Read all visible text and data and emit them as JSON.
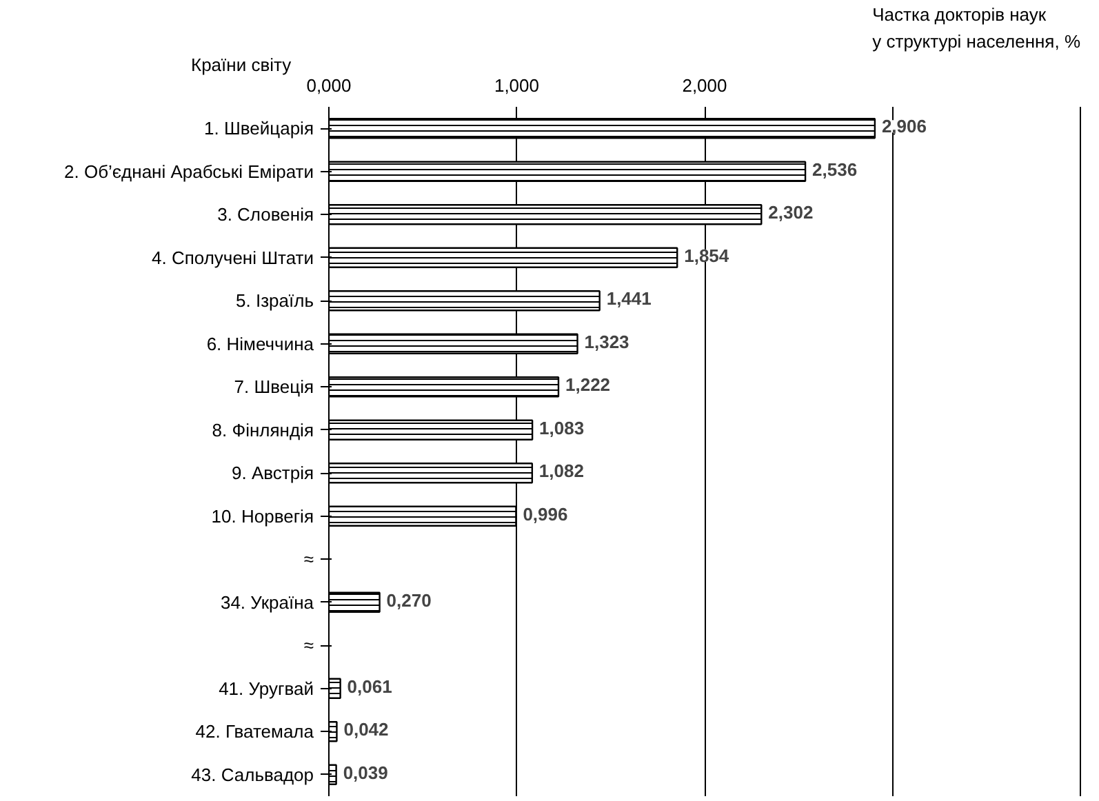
{
  "chart_data": {
    "type": "bar",
    "orientation": "horizontal",
    "ylabel": "Країни світу",
    "xlabel": "Частка докторів наук\nу структурі населення, %",
    "categories": [
      "1. Швейцарія",
      "2. Об’єднані Арабські Емірати",
      "3. Словенія",
      "4. Сполучені Штати",
      "5. Ізраїль",
      "6. Німеччина",
      "7. Швеція",
      "8. Фінляндія",
      "9. Австрія",
      "10. Норвегія",
      "≈",
      "34. Україна",
      "≈",
      "41. Уругвай",
      "42. Гватемала",
      "43. Сальвадор"
    ],
    "values": [
      2.906,
      2.536,
      2.302,
      1.854,
      1.441,
      1.323,
      1.222,
      1.083,
      1.082,
      0.996,
      null,
      0.27,
      null,
      0.061,
      0.042,
      0.039
    ],
    "value_labels": [
      "2,906",
      "2,536",
      "2,302",
      "1,854",
      "1,441",
      "1,323",
      "1,222",
      "1,083",
      "1,082",
      "0,996",
      null,
      "0,270",
      null,
      "0,061",
      "0,042",
      "0,039"
    ],
    "color": "#ffffff",
    "xlim": [
      0,
      4
    ],
    "xticks": [
      {
        "value": 0,
        "label": "0,000"
      },
      {
        "value": 1,
        "label": "1,000"
      },
      {
        "value": 2,
        "label": "2,000"
      },
      {
        "value": 3,
        "label": null
      },
      {
        "value": 4,
        "label": null
      }
    ],
    "grid": "x"
  }
}
